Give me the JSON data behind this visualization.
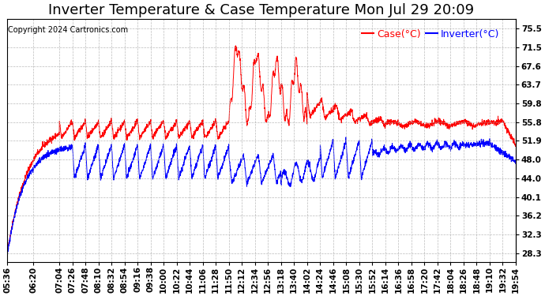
{
  "title": "Inverter Temperature & Case Temperature Mon Jul 29 20:09",
  "copyright": "Copyright 2024 Cartronics.com",
  "y_ticks": [
    75.5,
    71.5,
    67.6,
    63.7,
    59.8,
    55.8,
    51.9,
    48.0,
    44.0,
    40.1,
    36.2,
    32.3,
    28.3
  ],
  "ylim": [
    26.5,
    77.5
  ],
  "legend_case_label": "Case(°C)",
  "legend_inverter_label": "Inverter(°C)",
  "case_color": "red",
  "inverter_color": "blue",
  "bg_color": "white",
  "grid_color": "#aaaaaa",
  "title_fontsize": 13,
  "copyright_fontsize": 7,
  "legend_fontsize": 9,
  "tick_fontsize": 7.5,
  "x_tick_labels": [
    "05:36",
    "06:20",
    "07:04",
    "07:26",
    "07:48",
    "08:10",
    "08:32",
    "08:54",
    "09:16",
    "09:38",
    "10:00",
    "10:22",
    "10:44",
    "11:06",
    "11:28",
    "11:50",
    "12:12",
    "12:34",
    "12:56",
    "13:18",
    "13:40",
    "14:02",
    "14:24",
    "14:46",
    "15:08",
    "15:30",
    "15:52",
    "16:14",
    "16:36",
    "16:58",
    "17:20",
    "17:42",
    "18:04",
    "18:26",
    "18:48",
    "19:10",
    "19:32",
    "19:54"
  ],
  "x_tick_minutes": [
    0,
    44,
    88,
    110,
    132,
    154,
    176,
    198,
    220,
    242,
    264,
    286,
    308,
    330,
    352,
    374,
    396,
    418,
    440,
    462,
    484,
    506,
    528,
    550,
    572,
    594,
    616,
    638,
    660,
    682,
    704,
    726,
    748,
    770,
    792,
    814,
    836,
    858
  ],
  "total_minutes": 858
}
